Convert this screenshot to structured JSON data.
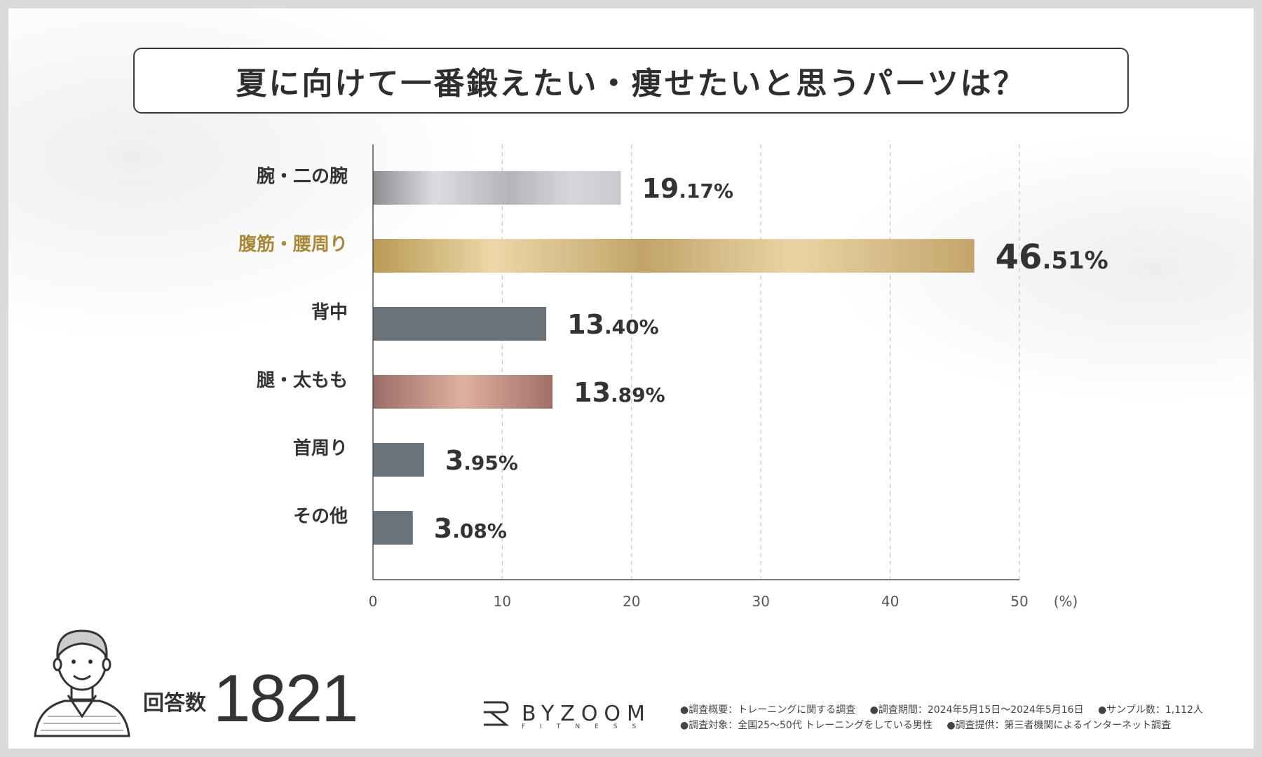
{
  "title": "夏に向けて一番鍛えたい・痩せたいと思うパーツは？",
  "chart_data": {
    "type": "bar",
    "orientation": "horizontal",
    "categories": [
      "腕・二の腕",
      "腹筋・腰周り",
      "背中",
      "腿・太もも",
      "首周り",
      "その他"
    ],
    "values": [
      19.17,
      46.51,
      13.4,
      13.89,
      3.95,
      3.08
    ],
    "labels": [
      "19.17%",
      "46.51%",
      "13.40%",
      "13.89%",
      "3.95%",
      "3.08%"
    ],
    "highlight_index": 1,
    "xlim": [
      0,
      50
    ],
    "xticks": [
      0,
      10,
      20,
      30,
      40,
      50
    ],
    "xunit": "(%)",
    "grid": true,
    "colors": {
      "default": "#6b737a",
      "highlight_label": "#a8893a",
      "label": "#333333"
    }
  },
  "respondents": {
    "label": "回答数",
    "count": "1821"
  },
  "brand": {
    "name": "BYZOOM",
    "sub": "FITNESS"
  },
  "notes": {
    "line1": [
      "●調査概要：トレーニングに関する調査",
      "●調査期間：2024年5月15日～2024年5月16日",
      "●サンプル数：1,112人"
    ],
    "line2": [
      "●調査対象：全国25～50代 トレーニングをしている男性",
      "●調査提供：第三者機関によるインターネット調査"
    ]
  }
}
